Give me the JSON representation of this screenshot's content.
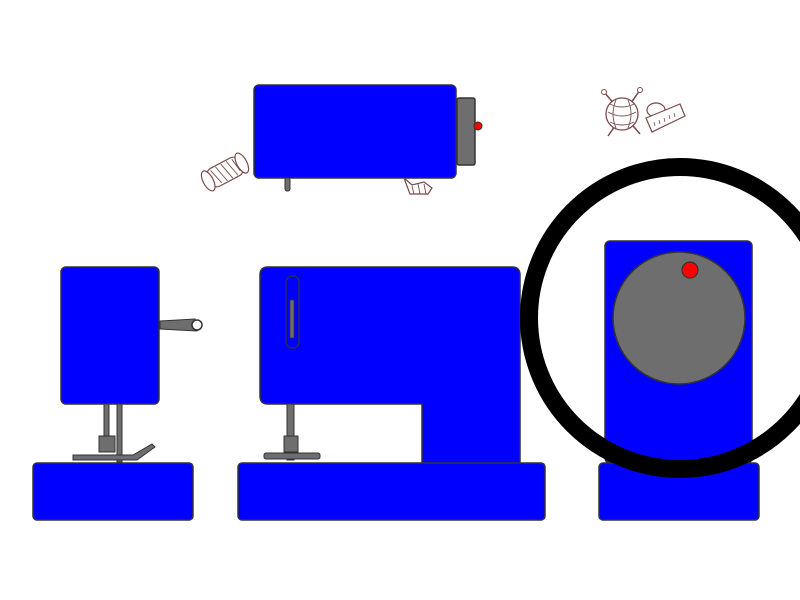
{
  "colors": {
    "background": "#ffffff",
    "body": "#0000ff",
    "outline": "#333333",
    "metal": "#6e6e6e",
    "dial": "#6e6e6e",
    "indicator": "#ff0000",
    "ring": "#000000",
    "sketch_stroke": "#7a4a4a"
  },
  "icons": {
    "sewing_machine_top_view": "sewing-machine-top-view-icon",
    "sewing_machine_left_side": "sewing-machine-left-side-icon",
    "sewing_machine_front": "sewing-machine-front-icon",
    "sewing_machine_right_side": "sewing-machine-right-side-icon",
    "thread_spool": "thread-spool-icon",
    "presser_foot": "presser-foot-icon",
    "yarn_ball": "yarn-ball-with-needles-icon",
    "tape_measure": "tape-measure-icon",
    "highlight_ring": "highlight-circle-icon"
  }
}
